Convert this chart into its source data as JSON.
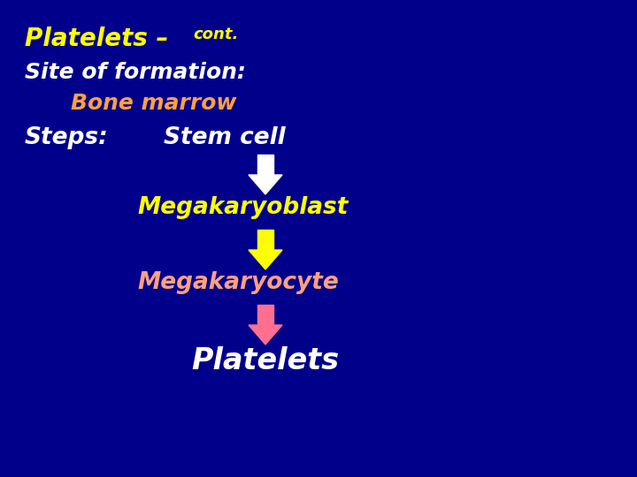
{
  "background_color": "#00008B",
  "title_text": "Platelets – ",
  "title_cont": "cont.",
  "title_color": "#FFFF00",
  "title_cont_color": "#FFFF00",
  "title_fontsize": 20,
  "title_cont_fontsize": 13,
  "line1_text": "Site of formation:",
  "line1_color": "#FFFFFF",
  "line1_fontsize": 18,
  "line2_text": "Bone marrow",
  "line2_color": "#FFA040",
  "line2_fontsize": 18,
  "line3_label": "Steps:",
  "line3_label_color": "#FFFFFF",
  "line3_value": "Stem cell",
  "line3_value_color": "#FFFFFF",
  "line3_fontsize": 19,
  "step1_text": "Megakaryoblast",
  "step1_color": "#FFFF00",
  "step1_fontsize": 19,
  "step2_text": "Megakaryocyte",
  "step2_color": "#FFA080",
  "step2_fontsize": 19,
  "step3_text": "Platelets",
  "step3_color": "#FFFFFF",
  "step3_fontsize": 24,
  "arrow1_color": "#FFFFFF",
  "arrow2_color": "#FFFF00",
  "arrow3_color": "#FF7090"
}
